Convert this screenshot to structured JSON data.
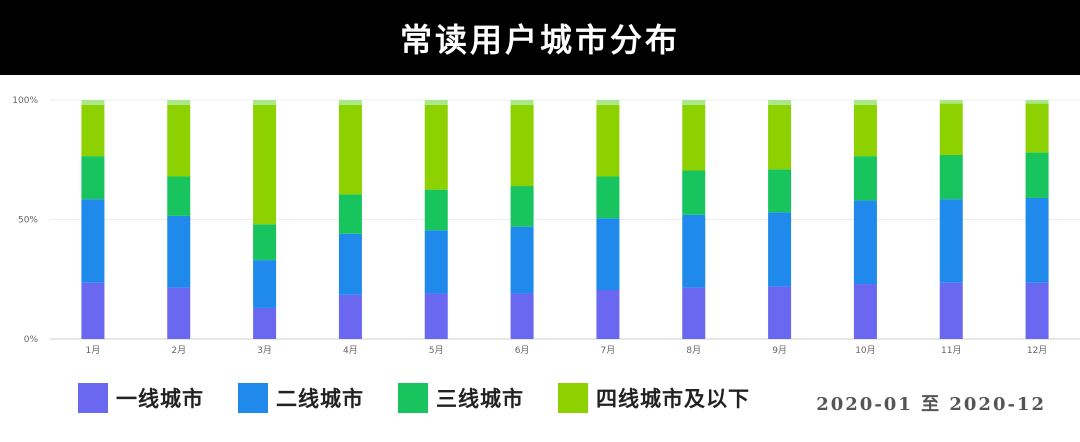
{
  "header": {
    "title": "常读用户城市分布"
  },
  "footer": {
    "date_range": "2020-01 至 2020-12"
  },
  "colors": {
    "tier1": "#6A67F0",
    "tier2": "#1F8AEB",
    "tier3": "#18C45E",
    "tier4": "#8ED100",
    "other": "#A8E88A"
  },
  "chart_data": {
    "type": "bar",
    "stacked": true,
    "normalized": true,
    "categories": [
      "1月",
      "2月",
      "3月",
      "4月",
      "5月",
      "6月",
      "7月",
      "8月",
      "9月",
      "10月",
      "11月",
      "12月"
    ],
    "y_ticks": [
      "0%",
      "50%",
      "100%"
    ],
    "ylim": [
      0,
      100
    ],
    "grid": true,
    "legend_position": "bottom",
    "series": [
      {
        "name": "一线城市",
        "color": "#6A67F0",
        "values": [
          23.5,
          21.5,
          13,
          18.5,
          19,
          19,
          20.5,
          21.5,
          22,
          23,
          23.5,
          23.5
        ]
      },
      {
        "name": "二线城市",
        "color": "#1F8AEB",
        "values": [
          35,
          30,
          20,
          25.5,
          26.5,
          28,
          30,
          30.5,
          31,
          35,
          35,
          35.5
        ]
      },
      {
        "name": "三线城市",
        "color": "#18C45E",
        "values": [
          18,
          16.5,
          15,
          16.5,
          17,
          17,
          17.5,
          18.5,
          18,
          18.5,
          18.5,
          19
        ]
      },
      {
        "name": "四线城市及以下",
        "color": "#8ED100",
        "values": [
          21.5,
          30,
          50,
          37.5,
          35.5,
          34,
          30,
          27.5,
          27,
          21.5,
          21.5,
          20.5
        ]
      },
      {
        "name": "",
        "color": "#A8E88A",
        "values": [
          2,
          2,
          2,
          2,
          2,
          2,
          2,
          2,
          2,
          2,
          1.5,
          1.5
        ]
      }
    ]
  }
}
